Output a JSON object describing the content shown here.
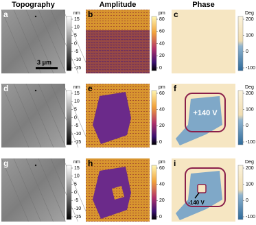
{
  "headers": [
    "Topography",
    "Amplitude",
    "Phase"
  ],
  "scale_bar": "3 μm",
  "rows": [
    {
      "panels": [
        {
          "letter": "a",
          "unit": "nm",
          "ticks": [
            "15",
            "10",
            "5",
            "0",
            "-5",
            "-10",
            "-15"
          ]
        },
        {
          "letter": "b",
          "unit": "pm",
          "ticks": [
            "80",
            "60",
            "40",
            "20",
            "0"
          ]
        },
        {
          "letter": "c",
          "unit": "Deg",
          "ticks": [
            "200",
            "100",
            "0",
            "-100"
          ]
        }
      ]
    },
    {
      "panels": [
        {
          "letter": "d",
          "unit": "nm",
          "ticks": [
            "15",
            "10",
            "5",
            "0",
            "-5",
            "-10",
            "-15"
          ]
        },
        {
          "letter": "e",
          "unit": "pm",
          "ticks": [
            "60",
            "40",
            "20",
            "0"
          ]
        },
        {
          "letter": "f",
          "unit": "Deg",
          "ticks": [
            "200",
            "100",
            "0",
            "-100"
          ],
          "annotation": "+140 V"
        }
      ]
    },
    {
      "panels": [
        {
          "letter": "g",
          "unit": "nm",
          "ticks": [
            "15",
            "10",
            "5",
            "0",
            "-5",
            "-10",
            "-15"
          ]
        },
        {
          "letter": "h",
          "unit": "pm",
          "ticks": [
            "60",
            "40",
            "20",
            "0"
          ]
        },
        {
          "letter": "i",
          "unit": "Deg",
          "ticks": [
            "200",
            "100",
            "0",
            "-100"
          ],
          "annotation": "-140 V"
        }
      ]
    }
  ]
}
